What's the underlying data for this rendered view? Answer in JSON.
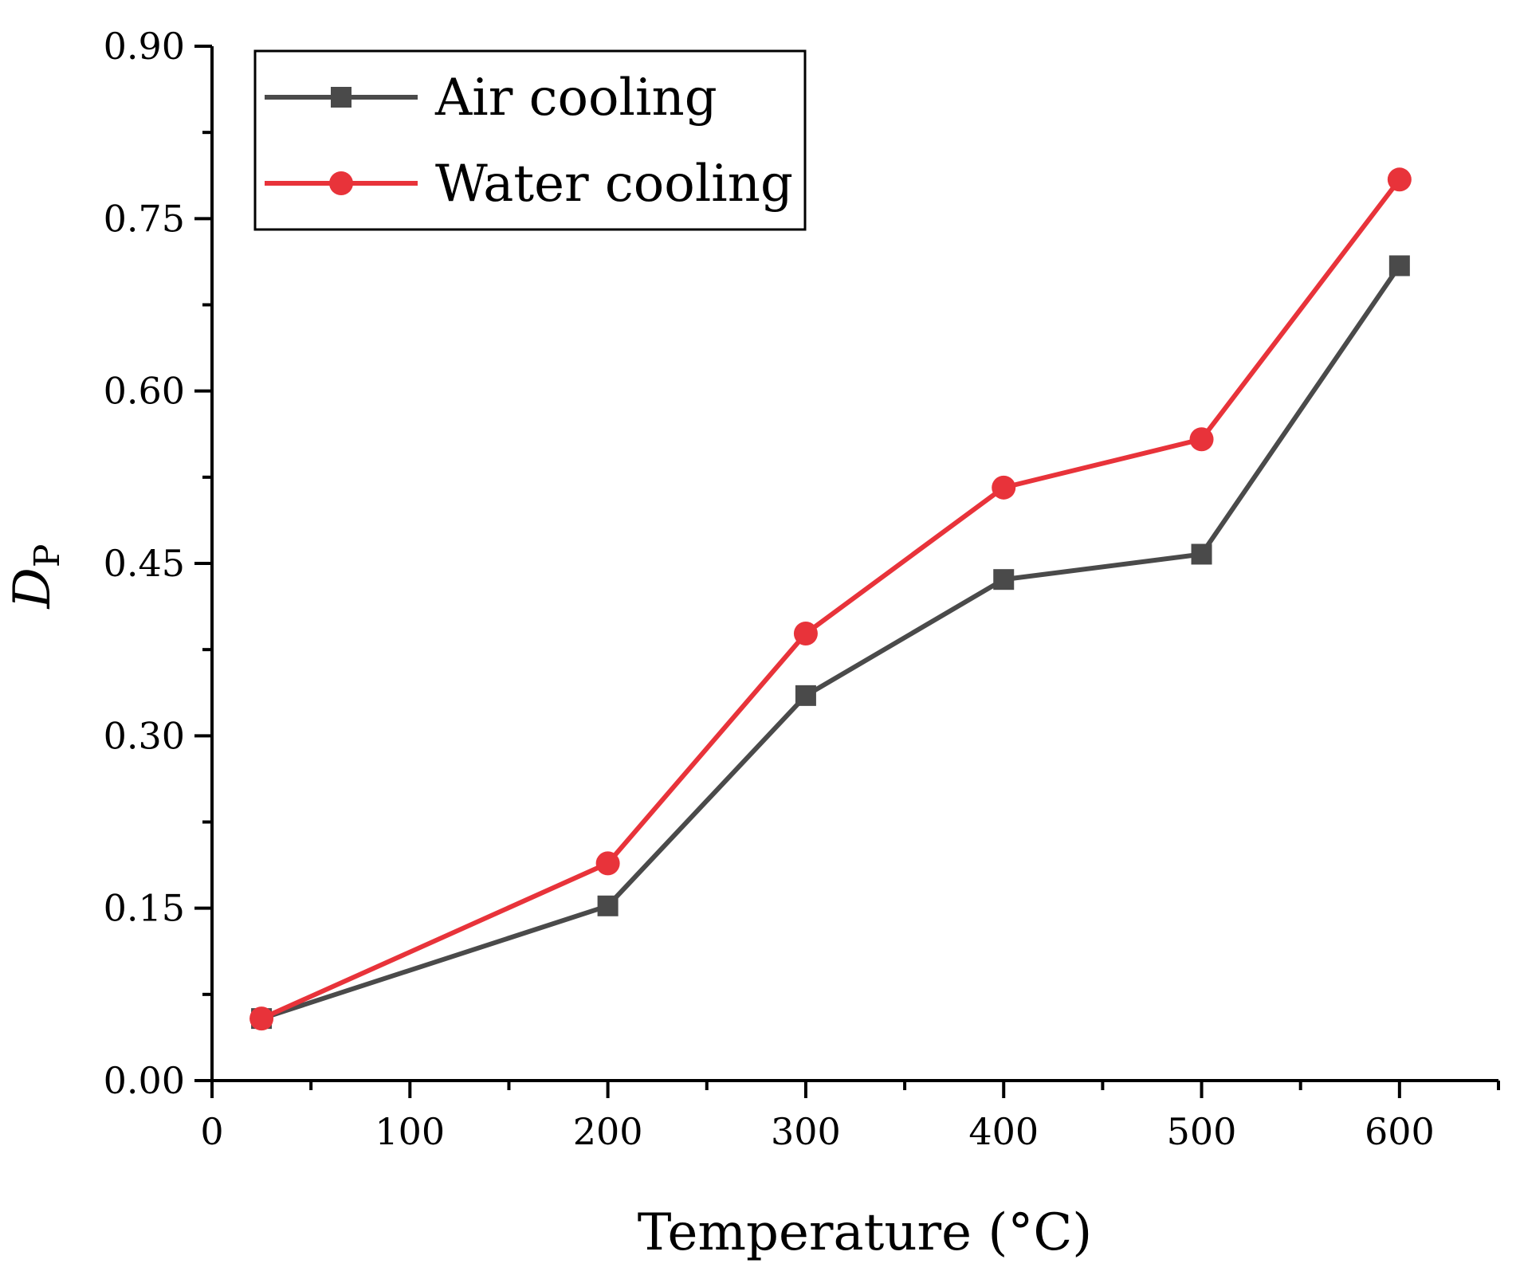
{
  "chart_data": {
    "type": "line",
    "xlabel": "Temperature (°C)",
    "ylabel_main": "D",
    "ylabel_sub": "P",
    "xlim": [
      0,
      650
    ],
    "ylim": [
      0,
      0.9
    ],
    "x_ticks": [
      0,
      100,
      200,
      300,
      400,
      500,
      600
    ],
    "x_tick_labels": [
      "0",
      "100",
      "200",
      "300",
      "400",
      "500",
      "600"
    ],
    "x_minor_ticks": [
      50,
      150,
      250,
      350,
      450,
      550,
      650
    ],
    "y_ticks": [
      0,
      0.15,
      0.3,
      0.45,
      0.6,
      0.75,
      0.9
    ],
    "y_tick_labels": [
      "0.00",
      "0.15",
      "0.30",
      "0.45",
      "0.60",
      "0.75",
      "0.90"
    ],
    "y_minor_ticks": [
      0.075,
      0.225,
      0.375,
      0.525,
      0.675,
      0.825
    ],
    "legend_position": "top-left",
    "grid": false,
    "series": [
      {
        "name": "Air cooling",
        "color": "#4a4a4a",
        "marker": "square",
        "x": [
          25,
          200,
          300,
          400,
          500,
          600
        ],
        "y": [
          0.054,
          0.152,
          0.335,
          0.436,
          0.458,
          0.709
        ]
      },
      {
        "name": "Water cooling",
        "color": "#e8333a",
        "marker": "circle",
        "x": [
          25,
          200,
          300,
          400,
          500,
          600
        ],
        "y": [
          0.054,
          0.189,
          0.389,
          0.516,
          0.558,
          0.784
        ]
      }
    ]
  }
}
